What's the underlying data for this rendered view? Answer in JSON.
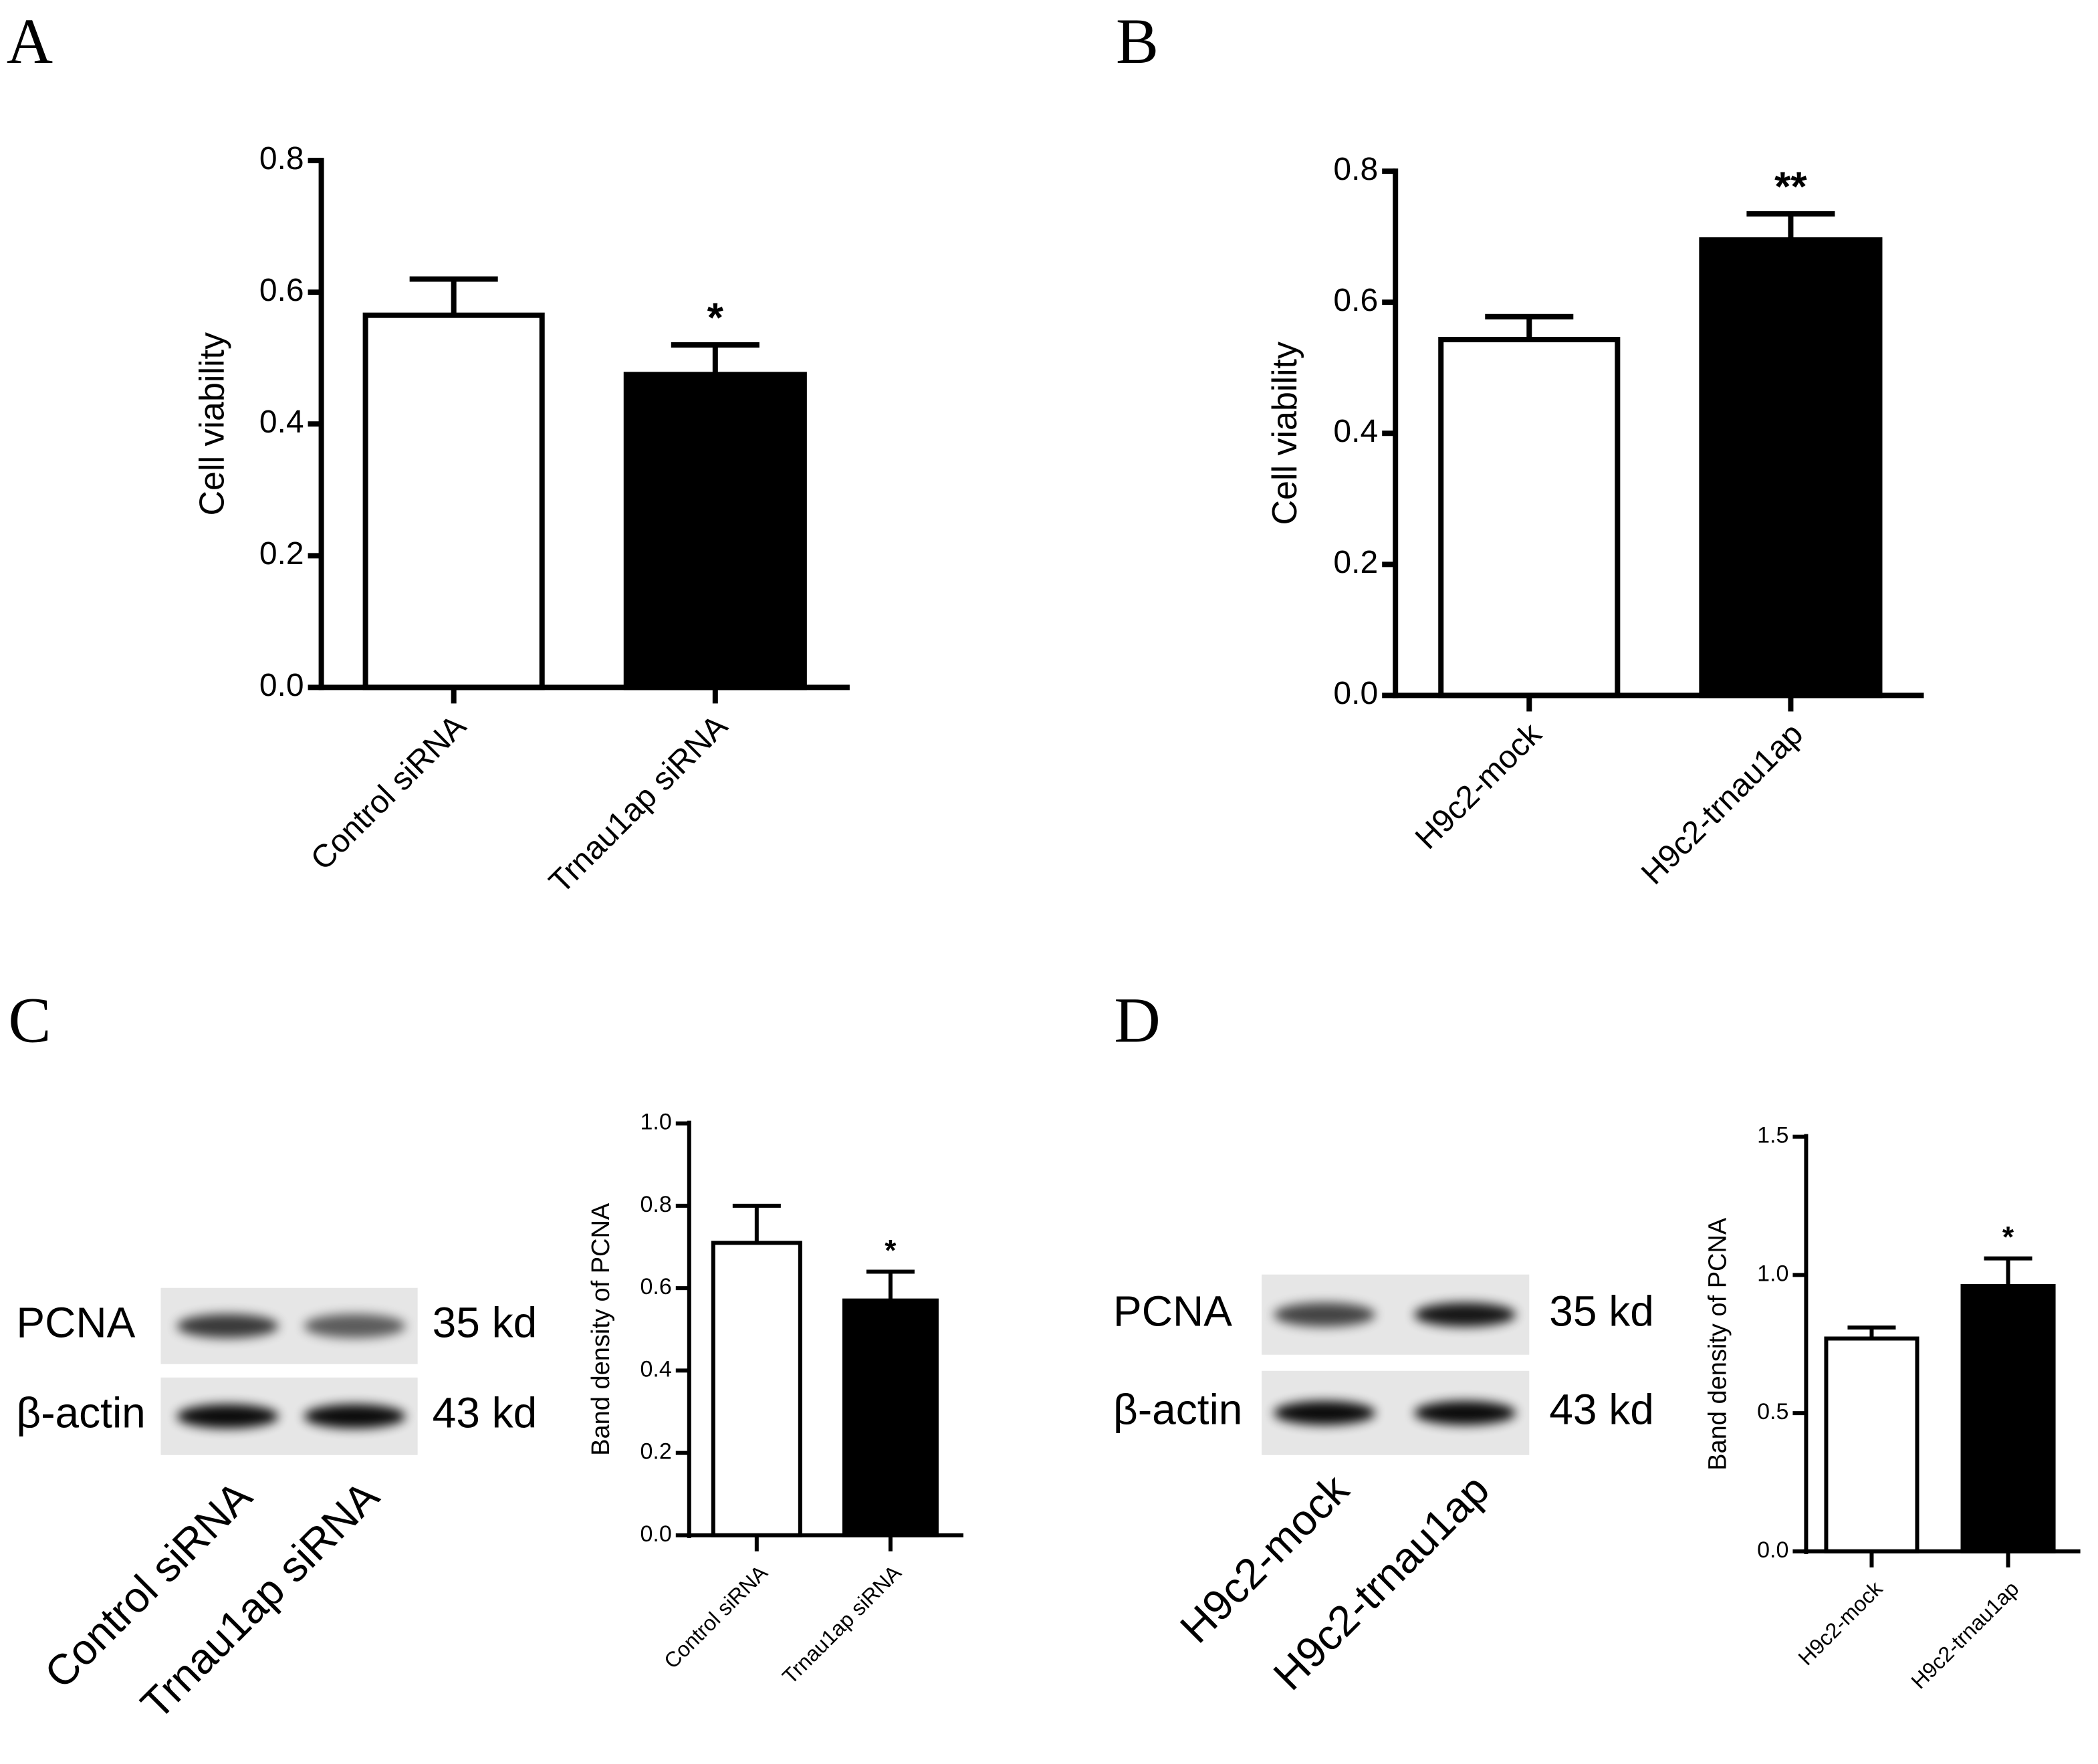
{
  "chart_data": [
    {
      "type": "bar",
      "panel": "A",
      "ylabel": "Cell viability",
      "categories": [
        "Control siRNA",
        "Trnau1ap siRNA"
      ],
      "values": [
        0.565,
        0.475
      ],
      "errors": [
        0.055,
        0.045
      ],
      "colors": [
        "#ffffff",
        "#000000"
      ],
      "significance": [
        null,
        "*"
      ],
      "ylim": [
        0,
        0.8
      ],
      "yticks": [
        {
          "value": 0,
          "label": "0.0"
        },
        0.2,
        0.4,
        0.6,
        0.8
      ]
    },
    {
      "type": "bar",
      "panel": "B",
      "ylabel": "Cell viability",
      "categories": [
        "H9c2-mock",
        "H9c2-trnau1ap"
      ],
      "values": [
        0.543,
        0.695
      ],
      "errors": [
        0.035,
        0.04
      ],
      "colors": [
        "#ffffff",
        "#000000"
      ],
      "significance": [
        null,
        "**"
      ],
      "ylim": [
        0,
        0.8
      ],
      "yticks": [
        {
          "value": 0,
          "label": "0.0"
        },
        0.2,
        0.4,
        0.6,
        0.8
      ]
    },
    {
      "type": "bar",
      "panel": "C",
      "ylabel": "Band density of PCNA",
      "categories": [
        "Control siRNA",
        "Trnau1ap siRNA"
      ],
      "values": [
        0.71,
        0.57
      ],
      "errors": [
        0.09,
        0.07
      ],
      "colors": [
        "#ffffff",
        "#000000"
      ],
      "significance": [
        null,
        "*"
      ],
      "ylim": [
        0,
        1
      ],
      "yticks": [
        {
          "value": 0,
          "label": "0.0"
        },
        0.2,
        0.4,
        0.6,
        0.8,
        {
          "value": 1,
          "label": "1.0"
        }
      ],
      "blot": {
        "rows": [
          {
            "label": "PCNA",
            "size": "35 kd"
          },
          {
            "label": "β-actin",
            "size": "43 kd"
          }
        ],
        "lanes": [
          "Control siRNA",
          "Trnau1ap siRNA"
        ]
      }
    },
    {
      "type": "bar",
      "panel": "D",
      "ylabel": "Band density of PCNA",
      "categories": [
        "H9c2-mock",
        "H9c2-trnau1ap"
      ],
      "values": [
        0.77,
        0.96
      ],
      "errors": [
        0.04,
        0.1
      ],
      "colors": [
        "#ffffff",
        "#000000"
      ],
      "significance": [
        null,
        "*"
      ],
      "ylim": [
        0,
        1.5
      ],
      "yticks": [
        {
          "value": 0,
          "label": "0.0"
        },
        0.5,
        {
          "value": 1,
          "label": "1.0"
        },
        1.5
      ],
      "blot": {
        "rows": [
          {
            "label": "PCNA",
            "size": "35 kd"
          },
          {
            "label": "β-actin",
            "size": "43 kd"
          }
        ],
        "lanes": [
          "H9c2-mock",
          "H9c2-trnau1ap"
        ]
      }
    }
  ]
}
